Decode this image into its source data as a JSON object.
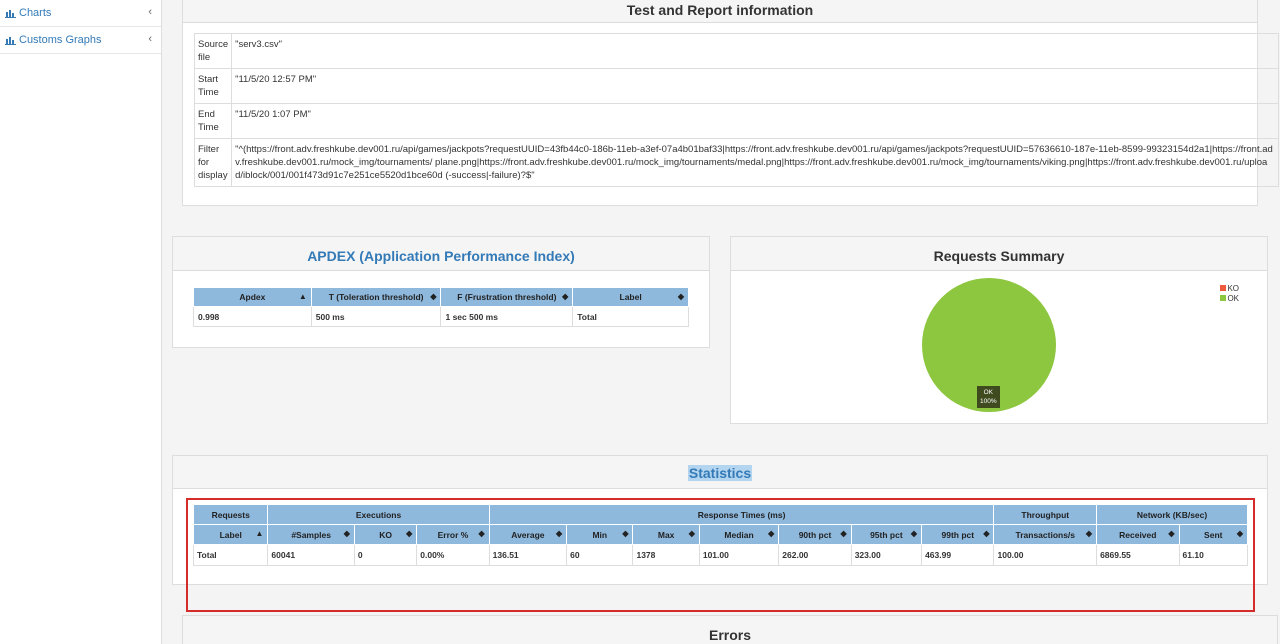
{
  "sidebar": {
    "items": [
      {
        "label": "Charts",
        "icon": "bar-chart-icon"
      },
      {
        "label": "Customs Graphs",
        "icon": "bar-chart-icon"
      }
    ]
  },
  "info": {
    "title": "Test and Report information",
    "rows": [
      {
        "label": "Source file",
        "value": "\"serv3.csv\""
      },
      {
        "label": "Start Time",
        "value": "\"11/5/20 12:57 PM\""
      },
      {
        "label": "End Time",
        "value": "\"11/5/20 1:07 PM\""
      },
      {
        "label": "Filter for display",
        "value": "\"^(https://front.adv.freshkube.dev001.ru/api/games/jackpots?requestUUID=43fb44c0-186b-11eb-a3ef-07a4b01baf33|https://front.adv.freshkube.dev001.ru/api/games/jackpots?requestUUID=57636610-187e-11eb-8599-99323154d2a1|https://front.adv.freshkube.dev001.ru/mock_img/tournaments/ plane.png|https://front.adv.freshkube.dev001.ru/mock_img/tournaments/medal.png|https://front.adv.freshkube.dev001.ru/mock_img/tournaments/viking.png|https://front.adv.freshkube.dev001.ru/upload/iblock/001/001f473d91c7e251ce5520d1bce60d (-success|-failure)?$\""
      }
    ]
  },
  "apdex": {
    "title": "APDEX (Application Performance Index)",
    "headers": [
      "Apdex",
      "T (Toleration threshold)",
      "F (Frustration threshold)",
      "Label"
    ],
    "row": [
      "0.998",
      "500 ms",
      "1 sec 500 ms",
      "Total"
    ]
  },
  "summary": {
    "title": "Requests Summary",
    "legend": [
      {
        "label": "KO",
        "color": "#f05a3c"
      },
      {
        "label": "OK",
        "color": "#8dc63f"
      }
    ],
    "pie_label_name": "OK",
    "pie_label_pct": "100%",
    "pie_color": "#8dc63f",
    "ok_percent": 100
  },
  "statistics": {
    "title": "Statistics",
    "groups": [
      "Requests",
      "Executions",
      "Response Times (ms)",
      "Throughput",
      "Network (KB/sec)"
    ],
    "columns": [
      "Label",
      "#Samples",
      "KO",
      "Error %",
      "Average",
      "Min",
      "Max",
      "Median",
      "90th pct",
      "95th pct",
      "99th pct",
      "Transactions/s",
      "Received",
      "Sent"
    ],
    "row": [
      "Total",
      "60041",
      "0",
      "0.00%",
      "136.51",
      "60",
      "1378",
      "101.00",
      "262.00",
      "323.00",
      "463.99",
      "100.00",
      "6869.55",
      "61.10"
    ]
  },
  "errors": {
    "title": "Errors"
  },
  "colors": {
    "accent": "#337ab7",
    "table_header": "#8eb8dc",
    "highlight": "#d42b2b"
  }
}
